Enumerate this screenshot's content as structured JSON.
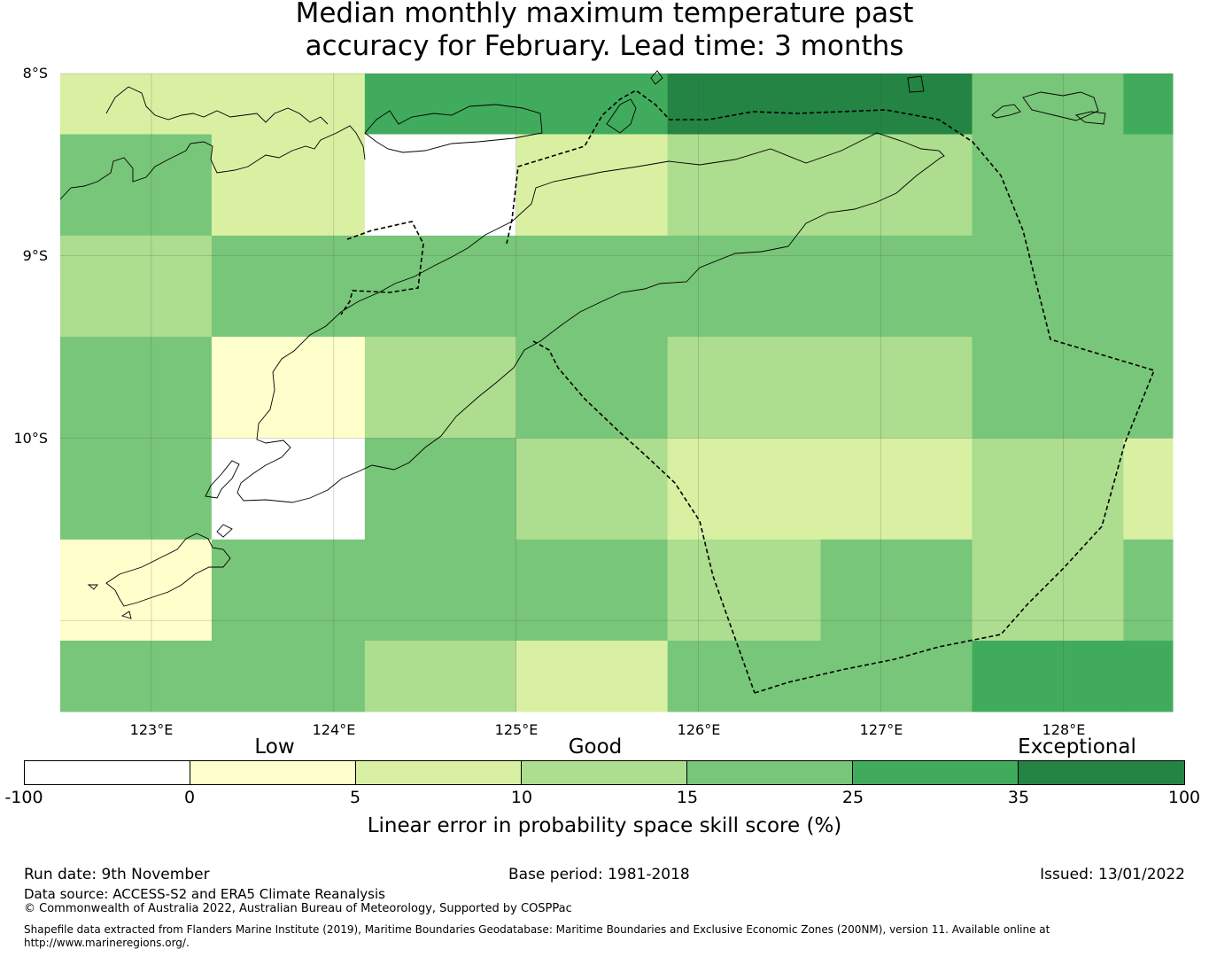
{
  "title": {
    "line1": "Median monthly maximum temperature past",
    "line2": "accuracy for February. Lead time: 3 months"
  },
  "map": {
    "lat_labels": [
      "8°S",
      "9°S",
      "10°S"
    ],
    "lon_labels": [
      "123°E",
      "124°E",
      "125°E",
      "126°E",
      "127°E",
      "128°E"
    ],
    "lat_range": [
      -11.5,
      -8.0
    ],
    "lon_range": [
      122.5,
      128.6
    ],
    "grid_lon_edges": [
      122.5,
      123.33,
      124.17,
      125.0,
      125.83,
      126.67,
      127.5,
      128.33,
      128.6
    ],
    "grid_lat_edges": [
      -8.0,
      -8.333,
      -8.889,
      -9.444,
      -10.0,
      -10.556,
      -11.111,
      -11.5
    ],
    "skill_grid": [
      [
        6.5,
        6.5,
        30,
        30,
        40,
        40,
        20,
        30
      ],
      [
        20,
        6.5,
        -50,
        6.5,
        12.5,
        12.5,
        20,
        20
      ],
      [
        12.5,
        20,
        20,
        20,
        20,
        20,
        20,
        20
      ],
      [
        20,
        2.5,
        12.5,
        20,
        12.5,
        12.5,
        20,
        20
      ],
      [
        20,
        -50,
        20,
        12.5,
        6.5,
        6.5,
        12.5,
        6.5
      ],
      [
        2.5,
        20,
        20,
        20,
        12.5,
        20,
        12.5,
        20
      ],
      [
        20,
        20,
        12.5,
        6.5,
        20,
        20,
        30,
        30
      ]
    ]
  },
  "colorbar": {
    "category_labels": [
      "Low",
      "Good",
      "Exceptional"
    ],
    "ticks": [
      "-100",
      "0",
      "5",
      "10",
      "15",
      "25",
      "35",
      "100"
    ],
    "colors": [
      "#ffffff",
      "#ffffcc",
      "#d9f0a3",
      "#addd8e",
      "#78c679",
      "#41ab5d",
      "#238443"
    ],
    "title": "Linear error in probability space skill score (%)"
  },
  "footer": {
    "run_date": "Run date: 9th November",
    "base_period": "Base period: 1981-2018",
    "issued": "Issued: 13/01/2022",
    "data_source": "Data source: ACCESS-S2 and ERA5 Climate Reanalysis",
    "copyright": "© Commonwealth of Australia 2022, Australian Bureau of Meteorology, Supported by COSPPac",
    "shapefile_line1": "Shapefile data extracted from Flanders Marine Institute (2019), Maritime Boundaries Geodatabase: Maritime Boundaries and Exclusive Economic Zones (200NM), version 11. Available online at",
    "shapefile_line2": "http://www.marineregions.org/."
  }
}
